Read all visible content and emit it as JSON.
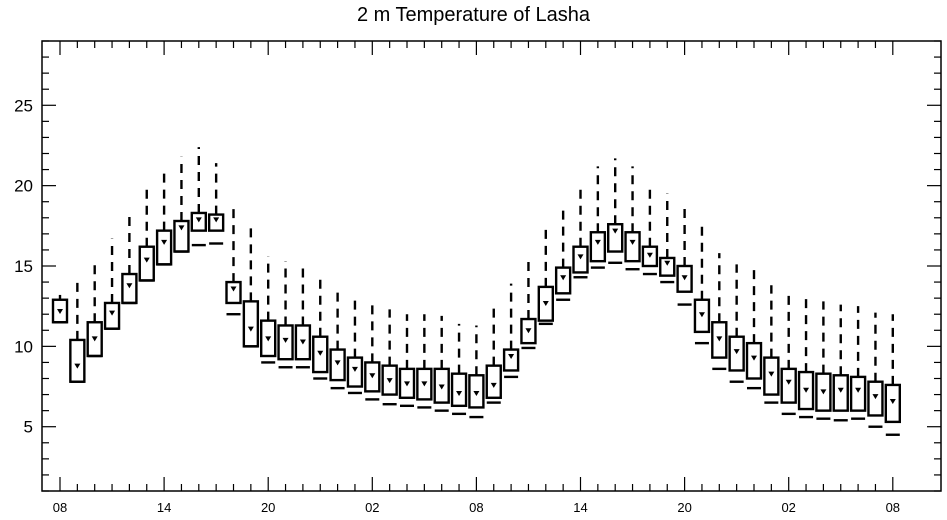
{
  "chart_data": {
    "type": "box",
    "title": "2 m Temperature of Lasha",
    "xlabel": "",
    "ylabel": "",
    "ylim": [
      1,
      29
    ],
    "y_ticks": [
      5,
      10,
      15,
      20,
      25
    ],
    "x_tick_labels": [
      "08",
      "14",
      "20",
      "02",
      "08",
      "14",
      "20",
      "02",
      "08"
    ],
    "x_tick_hours": [
      0,
      6,
      12,
      18,
      24,
      30,
      36,
      42,
      48
    ],
    "grid": false,
    "legend": "none",
    "colors": {
      "line": "#000000",
      "background": "#ffffff"
    },
    "boxes": [
      {
        "hour": 0,
        "min": 11.5,
        "q1": 11.5,
        "median": 12.2,
        "q3": 12.9,
        "max": 13.2
      },
      {
        "hour": 1,
        "min": 7.8,
        "q1": 7.8,
        "median": 8.8,
        "q3": 10.4,
        "max": 14.0
      },
      {
        "hour": 2,
        "min": 9.4,
        "q1": 9.4,
        "median": 10.5,
        "q3": 11.5,
        "max": 15.3
      },
      {
        "hour": 3,
        "min": 11.1,
        "q1": 11.1,
        "median": 12.1,
        "q3": 12.7,
        "max": 16.7
      },
      {
        "hour": 4,
        "min": 12.7,
        "q1": 12.7,
        "median": 13.8,
        "q3": 14.5,
        "max": 18.4
      },
      {
        "hour": 5,
        "min": 14.1,
        "q1": 14.1,
        "median": 15.4,
        "q3": 16.2,
        "max": 19.9
      },
      {
        "hour": 6,
        "min": 15.1,
        "q1": 15.1,
        "median": 16.5,
        "q3": 17.2,
        "max": 21.1
      },
      {
        "hour": 7,
        "min": 15.9,
        "q1": 15.9,
        "median": 17.4,
        "q3": 17.8,
        "max": 21.8
      },
      {
        "hour": 8,
        "min": 16.3,
        "q1": 17.2,
        "median": 17.9,
        "q3": 18.3,
        "max": 22.4
      },
      {
        "hour": 9,
        "min": 16.4,
        "q1": 17.2,
        "median": 17.9,
        "q3": 18.2,
        "max": 21.4
      },
      {
        "hour": 10,
        "min": 12.0,
        "q1": 12.7,
        "median": 13.6,
        "q3": 14.0,
        "max": 18.6
      },
      {
        "hour": 11,
        "min": 10.0,
        "q1": 10.0,
        "median": 11.1,
        "q3": 12.8,
        "max": 17.5
      },
      {
        "hour": 12,
        "min": 9.0,
        "q1": 9.4,
        "median": 10.5,
        "q3": 11.6,
        "max": 15.6
      },
      {
        "hour": 13,
        "min": 8.7,
        "q1": 9.2,
        "median": 10.4,
        "q3": 11.3,
        "max": 15.3
      },
      {
        "hour": 14,
        "min": 8.7,
        "q1": 9.2,
        "median": 10.3,
        "q3": 11.3,
        "max": 15.2
      },
      {
        "hour": 15,
        "min": 8.0,
        "q1": 8.4,
        "median": 9.6,
        "q3": 10.6,
        "max": 14.4
      },
      {
        "hour": 16,
        "min": 7.4,
        "q1": 7.9,
        "median": 9.0,
        "q3": 9.8,
        "max": 13.6
      },
      {
        "hour": 17,
        "min": 7.1,
        "q1": 7.5,
        "median": 8.6,
        "q3": 9.3,
        "max": 13.0
      },
      {
        "hour": 18,
        "min": 6.7,
        "q1": 7.2,
        "median": 8.2,
        "q3": 9.0,
        "max": 12.6
      },
      {
        "hour": 19,
        "min": 6.4,
        "q1": 7.0,
        "median": 7.9,
        "q3": 8.8,
        "max": 12.3
      },
      {
        "hour": 20,
        "min": 6.3,
        "q1": 6.8,
        "median": 7.7,
        "q3": 8.6,
        "max": 12.0
      },
      {
        "hour": 21,
        "min": 6.2,
        "q1": 6.7,
        "median": 7.7,
        "q3": 8.6,
        "max": 12.0
      },
      {
        "hour": 22,
        "min": 6.0,
        "q1": 6.5,
        "median": 7.5,
        "q3": 8.6,
        "max": 11.9
      },
      {
        "hour": 23,
        "min": 5.8,
        "q1": 6.3,
        "median": 7.1,
        "q3": 8.3,
        "max": 11.4
      },
      {
        "hour": 24,
        "min": 5.6,
        "q1": 6.2,
        "median": 7.1,
        "q3": 8.2,
        "max": 11.3
      },
      {
        "hour": 25,
        "min": 6.5,
        "q1": 6.8,
        "median": 7.6,
        "q3": 8.8,
        "max": 12.5
      },
      {
        "hour": 26,
        "min": 8.1,
        "q1": 8.5,
        "median": 9.4,
        "q3": 9.8,
        "max": 13.9
      },
      {
        "hour": 27,
        "min": 9.9,
        "q1": 10.2,
        "median": 11.0,
        "q3": 11.7,
        "max": 15.4
      },
      {
        "hour": 28,
        "min": 11.4,
        "q1": 11.6,
        "median": 12.7,
        "q3": 13.7,
        "max": 17.3
      },
      {
        "hour": 29,
        "min": 12.9,
        "q1": 13.3,
        "median": 14.3,
        "q3": 14.9,
        "max": 18.8
      },
      {
        "hour": 30,
        "min": 14.3,
        "q1": 14.6,
        "median": 15.6,
        "q3": 16.2,
        "max": 20.1
      },
      {
        "hour": 31,
        "min": 14.9,
        "q1": 15.3,
        "median": 16.5,
        "q3": 17.1,
        "max": 21.2
      },
      {
        "hour": 32,
        "min": 15.2,
        "q1": 15.9,
        "median": 17.2,
        "q3": 17.6,
        "max": 21.7
      },
      {
        "hour": 33,
        "min": 14.8,
        "q1": 15.3,
        "median": 16.5,
        "q3": 17.1,
        "max": 21.2
      },
      {
        "hour": 34,
        "min": 14.5,
        "q1": 15.0,
        "median": 15.7,
        "q3": 16.2,
        "max": 20.1
      },
      {
        "hour": 35,
        "min": 14.0,
        "q1": 14.4,
        "median": 15.2,
        "q3": 15.5,
        "max": 19.5
      },
      {
        "hour": 36,
        "min": 12.6,
        "q1": 13.4,
        "median": 14.3,
        "q3": 15.0,
        "max": 18.9
      },
      {
        "hour": 37,
        "min": 10.2,
        "q1": 10.9,
        "median": 12.0,
        "q3": 12.9,
        "max": 17.6
      },
      {
        "hour": 38,
        "min": 8.6,
        "q1": 9.3,
        "median": 10.5,
        "q3": 11.5,
        "max": 15.8
      },
      {
        "hour": 39,
        "min": 7.8,
        "q1": 8.5,
        "median": 9.7,
        "q3": 10.6,
        "max": 15.1
      },
      {
        "hour": 40,
        "min": 7.4,
        "q1": 8.0,
        "median": 9.3,
        "q3": 10.2,
        "max": 14.8
      },
      {
        "hour": 41,
        "min": 6.5,
        "q1": 7.0,
        "median": 8.3,
        "q3": 9.3,
        "max": 13.8
      },
      {
        "hour": 42,
        "min": 5.8,
        "q1": 6.5,
        "median": 7.8,
        "q3": 8.6,
        "max": 13.2
      },
      {
        "hour": 43,
        "min": 5.6,
        "q1": 6.1,
        "median": 7.3,
        "q3": 8.4,
        "max": 13.0
      },
      {
        "hour": 44,
        "min": 5.5,
        "q1": 6.0,
        "median": 7.2,
        "q3": 8.3,
        "max": 12.8
      },
      {
        "hour": 45,
        "min": 5.4,
        "q1": 6.0,
        "median": 7.3,
        "q3": 8.2,
        "max": 12.6
      },
      {
        "hour": 46,
        "min": 5.5,
        "q1": 6.0,
        "median": 7.3,
        "q3": 8.1,
        "max": 12.5
      },
      {
        "hour": 47,
        "min": 5.0,
        "q1": 5.7,
        "median": 6.9,
        "q3": 7.8,
        "max": 12.1
      },
      {
        "hour": 48,
        "min": 4.5,
        "q1": 5.3,
        "median": 6.6,
        "q3": 7.6,
        "max": 12.0
      }
    ]
  }
}
